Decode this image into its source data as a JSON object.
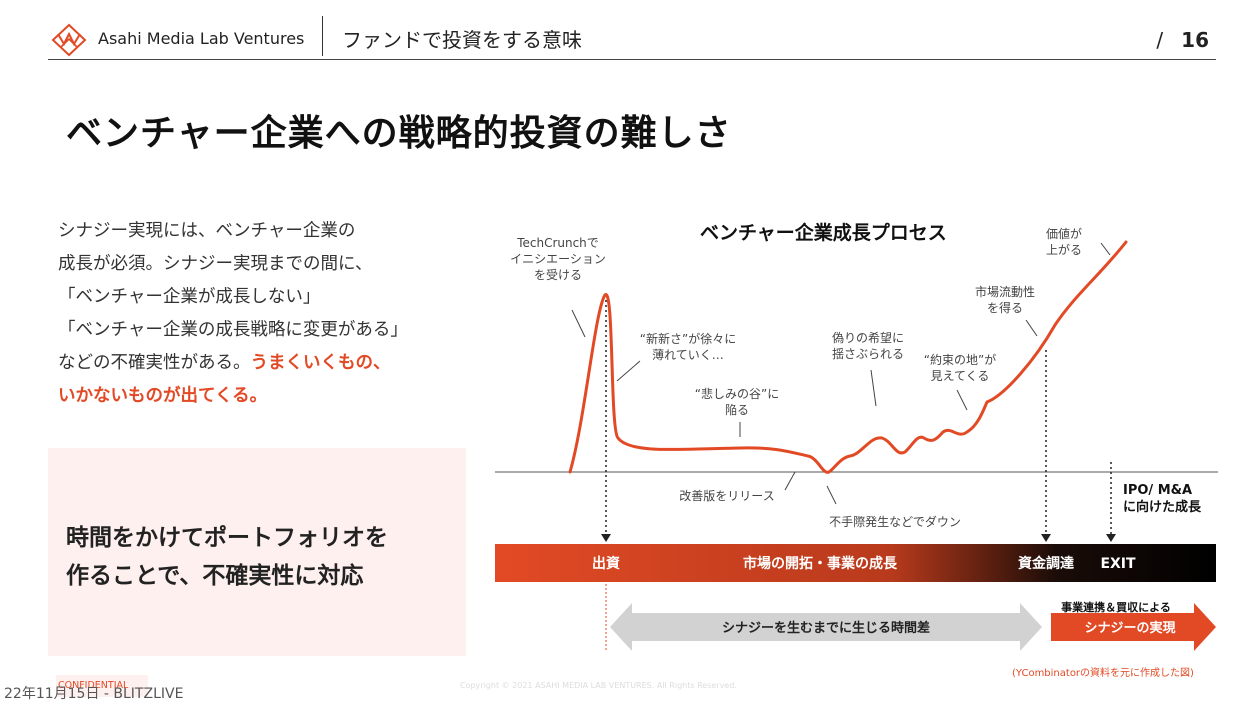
{
  "header": {
    "brand": "Asahi Media Lab Ventures",
    "section_title": "ファンドで投資をする意味",
    "page_slash": "/",
    "page_number": "16"
  },
  "main_title": "ベンチャー企業への戦略的投資の難しさ",
  "body": {
    "line1": "シナジー実現には、ベンチャー企業の",
    "line2": "成長が必須。シナジー実現までの間に、",
    "line3": "「ベンチャー企業が成長しない」",
    "line4": "「ベンチャー企業の成長戦略に変更がある」",
    "line5_plain": "などの不確実性がある。",
    "line5_accent": "うまくいくもの、",
    "line6_accent": "いかないものが出てくる。"
  },
  "callout": {
    "line1": "時間をかけてポートフォリオを",
    "line2": "作ることで、不確実性に対応"
  },
  "chart": {
    "title": "ベンチャー企業成長プロセス",
    "annotations": {
      "techcrunch_1": "TechCrunchで",
      "techcrunch_2": "イニシエーション",
      "techcrunch_3": "を受ける",
      "novelty_1": "“新新さ”が徐々に",
      "novelty_2": "薄れていく…",
      "valley_1": "“悲しみの谷”に",
      "valley_2": "陥る",
      "improved": "改善版をリリース",
      "trouble": "不手際発生などでダウン",
      "false_hope_1": "偽りの希望に",
      "false_hope_2": "揺さぶられる",
      "promised_1": "“約束の地”が",
      "promised_2": "見えてくる",
      "liquidity_1": "市場流動性",
      "liquidity_2": "を得る",
      "value_1": "価値が",
      "value_2": "上がる",
      "ipo_1": "IPO/ M&A",
      "ipo_2": "に向けた成長"
    },
    "bar": {
      "investment": "出資",
      "growth": "市場の開拓・事業の成長",
      "funding": "資金調達",
      "exit": "EXIT"
    },
    "gap_arrow": "シナジーを生むまでに生じる時間差",
    "synergy_top": "事業連携＆買収による",
    "synergy_main": "シナジーの実現"
  },
  "footer": {
    "source_note": "(YCombinatorの資料を元に作成した図)",
    "confidential": "CONFIDENTIAL",
    "date_stamp": "22年11月15日 - BLITZLIVE",
    "copyright": "Copyright © 2021 ASAHI MEDIA LAB VENTURES. All Rights Reserved."
  },
  "colors": {
    "accent": "#e24a25",
    "dark": "#111111",
    "callout_bg": "#fdf0ee"
  }
}
